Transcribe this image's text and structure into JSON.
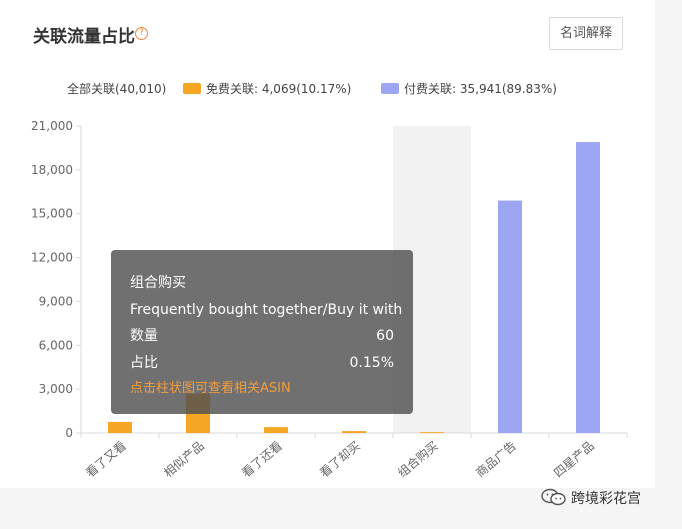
{
  "header": {
    "title": "关联流量占比",
    "glossary_label": "名词解释"
  },
  "legend": {
    "all": "全部关联(40,010)",
    "free": "免费关联: 4,069(10.17%)",
    "paid": "付费关联: 35,941(89.83%)"
  },
  "colors": {
    "free": "#f5a623",
    "paid": "#9da6f3",
    "highlight": "#f2f2f2"
  },
  "tooltip": {
    "title": "组合购买",
    "subtitle": "Frequently bought together/Buy it with",
    "count_label": "数量",
    "count_value": "60",
    "share_label": "占比",
    "share_value": "0.15%",
    "link_text": "点击柱状图可查看相关ASIN"
  },
  "chart_data": {
    "type": "bar",
    "categories": [
      "看了又看",
      "相似产品",
      "看了还看",
      "看了却买",
      "组合购买",
      "商品广告",
      "四星产品"
    ],
    "series": [
      {
        "name": "免费关联",
        "values": [
          750,
          2700,
          400,
          130,
          60,
          0,
          0
        ]
      },
      {
        "name": "付费关联",
        "values": [
          0,
          0,
          0,
          0,
          0,
          15900,
          19900
        ]
      }
    ],
    "ylim": [
      0,
      21000
    ],
    "yticks": [
      0,
      3000,
      6000,
      9000,
      12000,
      15000,
      18000,
      21000
    ],
    "ytick_labels": [
      "0",
      "3,000",
      "6,000",
      "9,000",
      "12,000",
      "15,000",
      "18,000",
      "21,000"
    ],
    "highlighted_category": "组合购买"
  },
  "footer": {
    "brand": "跨境彩花宫"
  }
}
